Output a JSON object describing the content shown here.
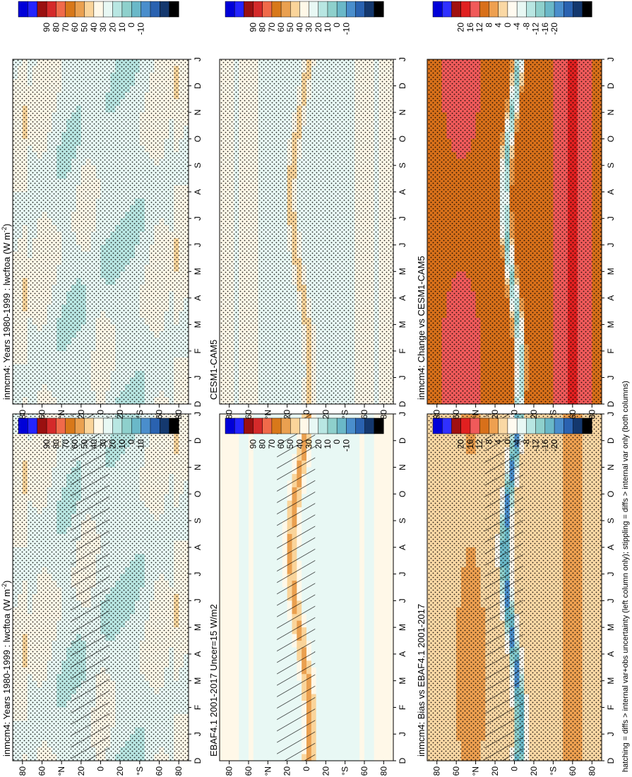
{
  "chart_data": {
    "type": "heatmap",
    "figure_note": "Six Hovmoller panels (month vs latitude) rotated 90 degrees clockwise on the page; x axis = month (D..J), y axis = latitude.",
    "months": [
      "D",
      "J",
      "F",
      "M",
      "A",
      "M",
      "J",
      "J",
      "A",
      "S",
      "O",
      "N",
      "D",
      "J"
    ],
    "lat_ticks": [
      "80",
      "60",
      "°N",
      "20",
      "0",
      "20",
      "°S",
      "60",
      "80"
    ],
    "lat_values": [
      80,
      60,
      40,
      20,
      0,
      -20,
      -40,
      -60,
      -80
    ],
    "abs_scale": {
      "labels": [
        "90",
        "80",
        "70",
        "60",
        "50",
        "40",
        "30",
        "20",
        "10",
        "0",
        "-10"
      ],
      "colors": [
        "#0000d8",
        "#2424ff",
        "#9a1010",
        "#d42a2a",
        "#f06a4a",
        "#d8781a",
        "#eaa050",
        "#fad49a",
        "#fff8e8",
        "#e8f8f4",
        "#b8e6e2",
        "#8ed0cc",
        "#6ab8c8",
        "#4a8ecc",
        "#2a62b0",
        "#14386e",
        "#000000"
      ]
    },
    "diff_scale": {
      "labels": [
        "20",
        "16",
        "12",
        "8",
        "4",
        "0",
        "-4",
        "-8",
        "-12",
        "-16",
        "-20"
      ],
      "colors": [
        "#0000d8",
        "#3030ff",
        "#a01010",
        "#e02020",
        "#f05a5a",
        "#d8701a",
        "#eea050",
        "#fad8a4",
        "#fffaf0",
        "#e8f8f4",
        "#b8e6e2",
        "#8ed0cc",
        "#6ab8c8",
        "#4a8ecc",
        "#2a62b0",
        "#14386e",
        "#000000"
      ]
    },
    "panels": [
      {
        "id": "lwcftoa_inmcm4",
        "title": "inmcm4: Years 1980-1999 : lwcftoa (W m",
        "title_sup": "-2",
        "title_end": ")",
        "kind": "abs",
        "hatch": "itcz",
        "stipple": true
      },
      {
        "id": "lwcftoa_inmcm4_ref",
        "title": "inmcm4: Years 1980-1999 : lwcftoa (W m",
        "title_sup": "-2",
        "title_end": ")",
        "kind": "abs",
        "hatch": null,
        "stipple": true
      },
      {
        "id": "ebaf",
        "title": "EBAF4.1 2001-2017 Uncer=15 W/m2",
        "title_sup": "",
        "title_end": "",
        "kind": "abs",
        "hatch": "itcz",
        "stipple": false
      },
      {
        "id": "cesm",
        "title": "CESM1-CAM5",
        "title_sup": "",
        "title_end": "",
        "kind": "abs",
        "hatch": null,
        "stipple": true
      },
      {
        "id": "bias",
        "title": "inmcm4: Bias vs EBAF4.1 2001-2017",
        "title_sup": "",
        "title_end": "",
        "kind": "diff",
        "hatch": "itcz",
        "stipple": true
      },
      {
        "id": "change",
        "title": "inmcm4: Change vs CESM1-CAM5",
        "title_sup": "",
        "title_end": "",
        "kind": "diff",
        "hatch": null,
        "stipple": true
      }
    ]
  },
  "footnote": "hatching = diffs > internal var+obs uncertainty (left column only); stippling = diffs > internal var only (both columns)"
}
